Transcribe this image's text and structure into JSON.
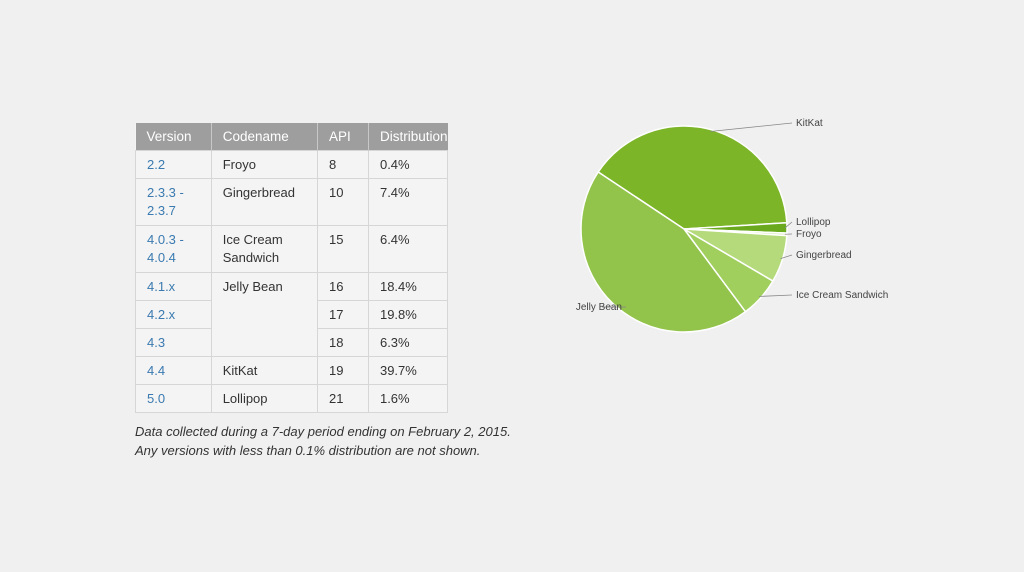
{
  "table": {
    "headers": [
      "Version",
      "Codename",
      "API",
      "Distribution"
    ],
    "rows": [
      {
        "version": "2.2",
        "codename": "Froyo",
        "api": "8",
        "distribution": "0.4%"
      },
      {
        "version": "2.3.3 -\n2.3.7",
        "codename": "Gingerbread",
        "api": "10",
        "distribution": "7.4%"
      },
      {
        "version": "4.0.3 -\n4.0.4",
        "codename": "Ice Cream\nSandwich",
        "api": "15",
        "distribution": "6.4%"
      },
      {
        "version": "4.1.x",
        "codename": "Jelly Bean",
        "api": "16",
        "distribution": "18.4%"
      },
      {
        "version": "4.2.x",
        "codename": "",
        "api": "17",
        "distribution": "19.8%"
      },
      {
        "version": "4.3",
        "codename": "",
        "api": "18",
        "distribution": "6.3%"
      },
      {
        "version": "4.4",
        "codename": "KitKat",
        "api": "19",
        "distribution": "39.7%"
      },
      {
        "version": "5.0",
        "codename": "Lollipop",
        "api": "21",
        "distribution": "1.6%"
      }
    ]
  },
  "footnote": {
    "line1": "Data collected during a 7-day period ending on February 2, 2015.",
    "line2": "Any versions with less than 0.1% distribution are not shown."
  },
  "chart_data": {
    "type": "pie",
    "title": "",
    "slices": [
      {
        "label": "KitKat",
        "value": 39.7,
        "color": "#7db529"
      },
      {
        "label": "Lollipop",
        "value": 1.6,
        "color": "#6aa81e"
      },
      {
        "label": "Froyo",
        "value": 0.4,
        "color": "#d9ecb8"
      },
      {
        "label": "Gingerbread",
        "value": 7.4,
        "color": "#b5da7c"
      },
      {
        "label": "Ice Cream Sandwich",
        "value": 6.4,
        "color": "#a0cf5e"
      },
      {
        "label": "Jelly Bean",
        "value": 44.5,
        "color": "#92c34a"
      }
    ]
  }
}
